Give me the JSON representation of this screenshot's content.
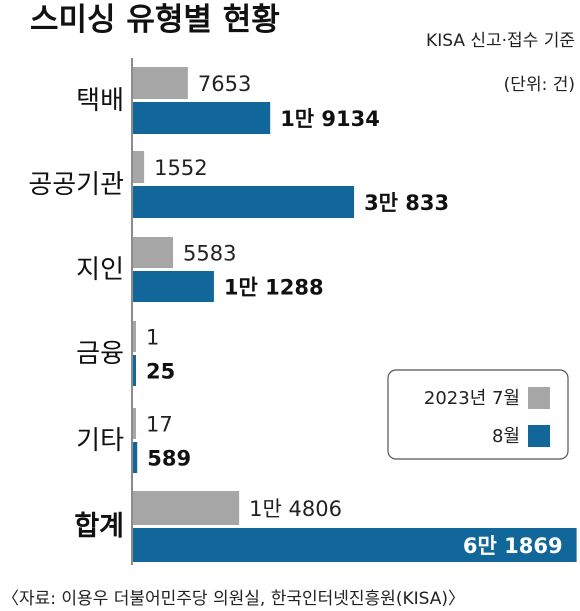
{
  "chart_data": {
    "type": "bar",
    "orientation": "horizontal",
    "title": "스미싱 유형별 현황",
    "subtitle": "KISA 신고·접수 기준",
    "unit": "(단위: 건)",
    "categories": [
      "택배",
      "공공기관",
      "지인",
      "금융",
      "기타",
      "합계"
    ],
    "series": [
      {
        "name": "2023년 7월",
        "color": "#a6a6a6",
        "values": [
          7653,
          1552,
          5583,
          1,
          17,
          14806
        ],
        "labels": [
          "7653",
          "1552",
          "5583",
          "1",
          "17",
          "1만 4806"
        ]
      },
      {
        "name": "8월",
        "color": "#11679a",
        "values": [
          19134,
          30833,
          11288,
          25,
          589,
          61869
        ],
        "labels": [
          "1만 9134",
          "3만 833",
          "1만 1288",
          "25",
          "589",
          "6만 1869"
        ]
      }
    ],
    "legend_position": "right",
    "source": "〈자료: 이용우 더불어민주당 의원실, 한국인터넷진흥원(KISA)〉"
  }
}
